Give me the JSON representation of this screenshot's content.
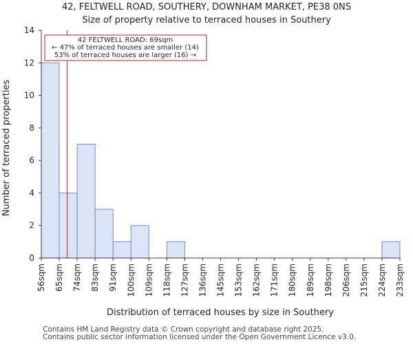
{
  "chart_data": {
    "type": "bar",
    "title": "42, FELTWELL ROAD, SOUTHERY, DOWNHAM MARKET, PE38 0NS",
    "subtitle": "Size of property relative to terraced houses in Southery",
    "xlabel": "Distribution of terraced houses by size in Southery",
    "ylabel": "Number of terraced properties",
    "bin_edges": [
      "56sqm",
      "65sqm",
      "74sqm",
      "83sqm",
      "91sqm",
      "100sqm",
      "109sqm",
      "118sqm",
      "127sqm",
      "136sqm",
      "145sqm",
      "153sqm",
      "162sqm",
      "171sqm",
      "180sqm",
      "189sqm",
      "198sqm",
      "206sqm",
      "215sqm",
      "224sqm",
      "233sqm"
    ],
    "values": [
      12,
      4,
      7,
      3,
      1,
      2,
      0,
      1,
      0,
      0,
      0,
      0,
      0,
      0,
      0,
      0,
      0,
      0,
      0,
      1
    ],
    "ylim": [
      0,
      14
    ],
    "yticks": [
      0,
      2,
      4,
      6,
      8,
      10,
      12,
      14
    ],
    "marker": {
      "value": 69,
      "unit": "sqm",
      "color": "#b22222"
    },
    "annotation": [
      "42 FELTWELL ROAD: 69sqm",
      "← 47% of terraced houses are smaller (14)",
      "53% of terraced houses are larger (16) →"
    ],
    "bar_fill": "#dbe4f5",
    "bar_edge": "#6b8fcc",
    "grid": false
  },
  "footer": {
    "line1": "Contains HM Land Registry data © Crown copyright and database right 2025.",
    "line2": "Contains public sector information licensed under the Open Government Licence v3.0."
  }
}
